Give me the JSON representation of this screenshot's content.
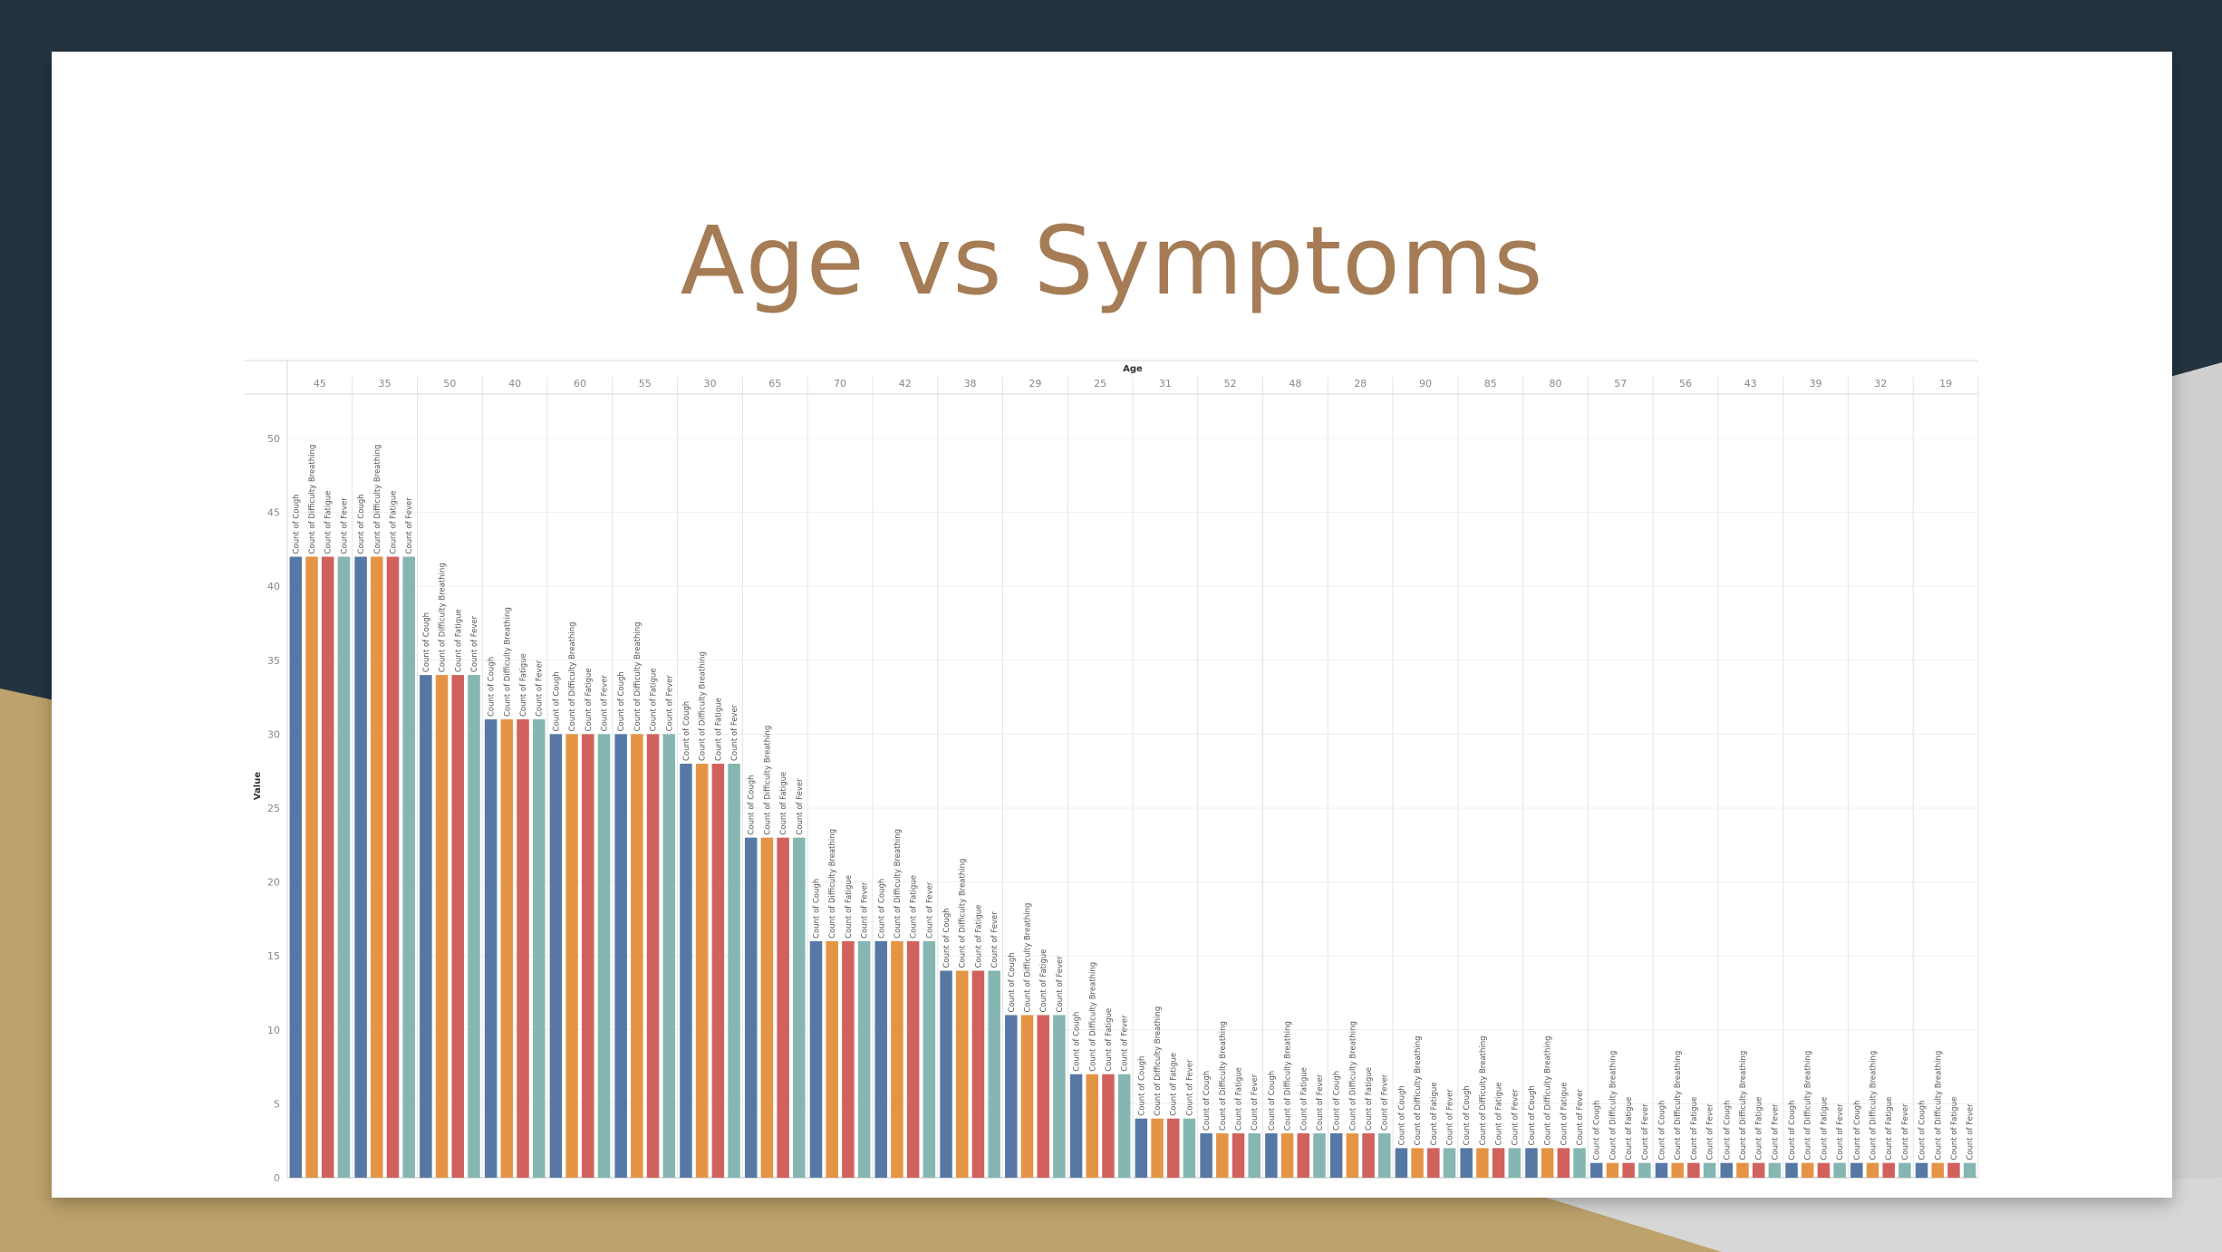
{
  "slide": {
    "title": "Age vs Symptoms",
    "colors": {
      "background_dark": "#233440",
      "accent_gold": "#bda26b",
      "accent_grey": "#c8c8c8",
      "title": "#a57c55"
    }
  },
  "chart_data": {
    "type": "bar",
    "title": "",
    "column_header": "Age",
    "xlabel": "",
    "ylabel": "Value",
    "ylim": [
      0,
      53
    ],
    "yticks": [
      0,
      5,
      10,
      15,
      20,
      25,
      30,
      35,
      40,
      45,
      50
    ],
    "grid": true,
    "categories": [
      "45",
      "35",
      "50",
      "40",
      "60",
      "55",
      "30",
      "65",
      "70",
      "42",
      "38",
      "29",
      "25",
      "31",
      "52",
      "48",
      "28",
      "90",
      "85",
      "80",
      "57",
      "56",
      "43",
      "39",
      "32",
      "19"
    ],
    "series": [
      {
        "name": "Count of Cough",
        "color": "#5778a4",
        "values": [
          42,
          42,
          34,
          31,
          30,
          30,
          28,
          23,
          16,
          16,
          14,
          11,
          7,
          4,
          3,
          3,
          3,
          2,
          2,
          2,
          1,
          1,
          1,
          1,
          1,
          1
        ]
      },
      {
        "name": "Count of Difficulty Breathing",
        "color": "#e49444",
        "values": [
          42,
          42,
          34,
          31,
          30,
          30,
          28,
          23,
          16,
          16,
          14,
          11,
          7,
          4,
          3,
          3,
          3,
          2,
          2,
          2,
          1,
          1,
          1,
          1,
          1,
          1
        ]
      },
      {
        "name": "Count of Fatigue",
        "color": "#d1615d",
        "values": [
          42,
          42,
          34,
          31,
          30,
          30,
          28,
          23,
          16,
          16,
          14,
          11,
          7,
          4,
          3,
          3,
          3,
          2,
          2,
          2,
          1,
          1,
          1,
          1,
          1,
          1
        ]
      },
      {
        "name": "Count of Fever",
        "color": "#85b6b2",
        "values": [
          42,
          42,
          34,
          31,
          30,
          30,
          28,
          23,
          16,
          16,
          14,
          11,
          7,
          4,
          3,
          3,
          3,
          2,
          2,
          2,
          1,
          1,
          1,
          1,
          1,
          1
        ]
      }
    ]
  }
}
